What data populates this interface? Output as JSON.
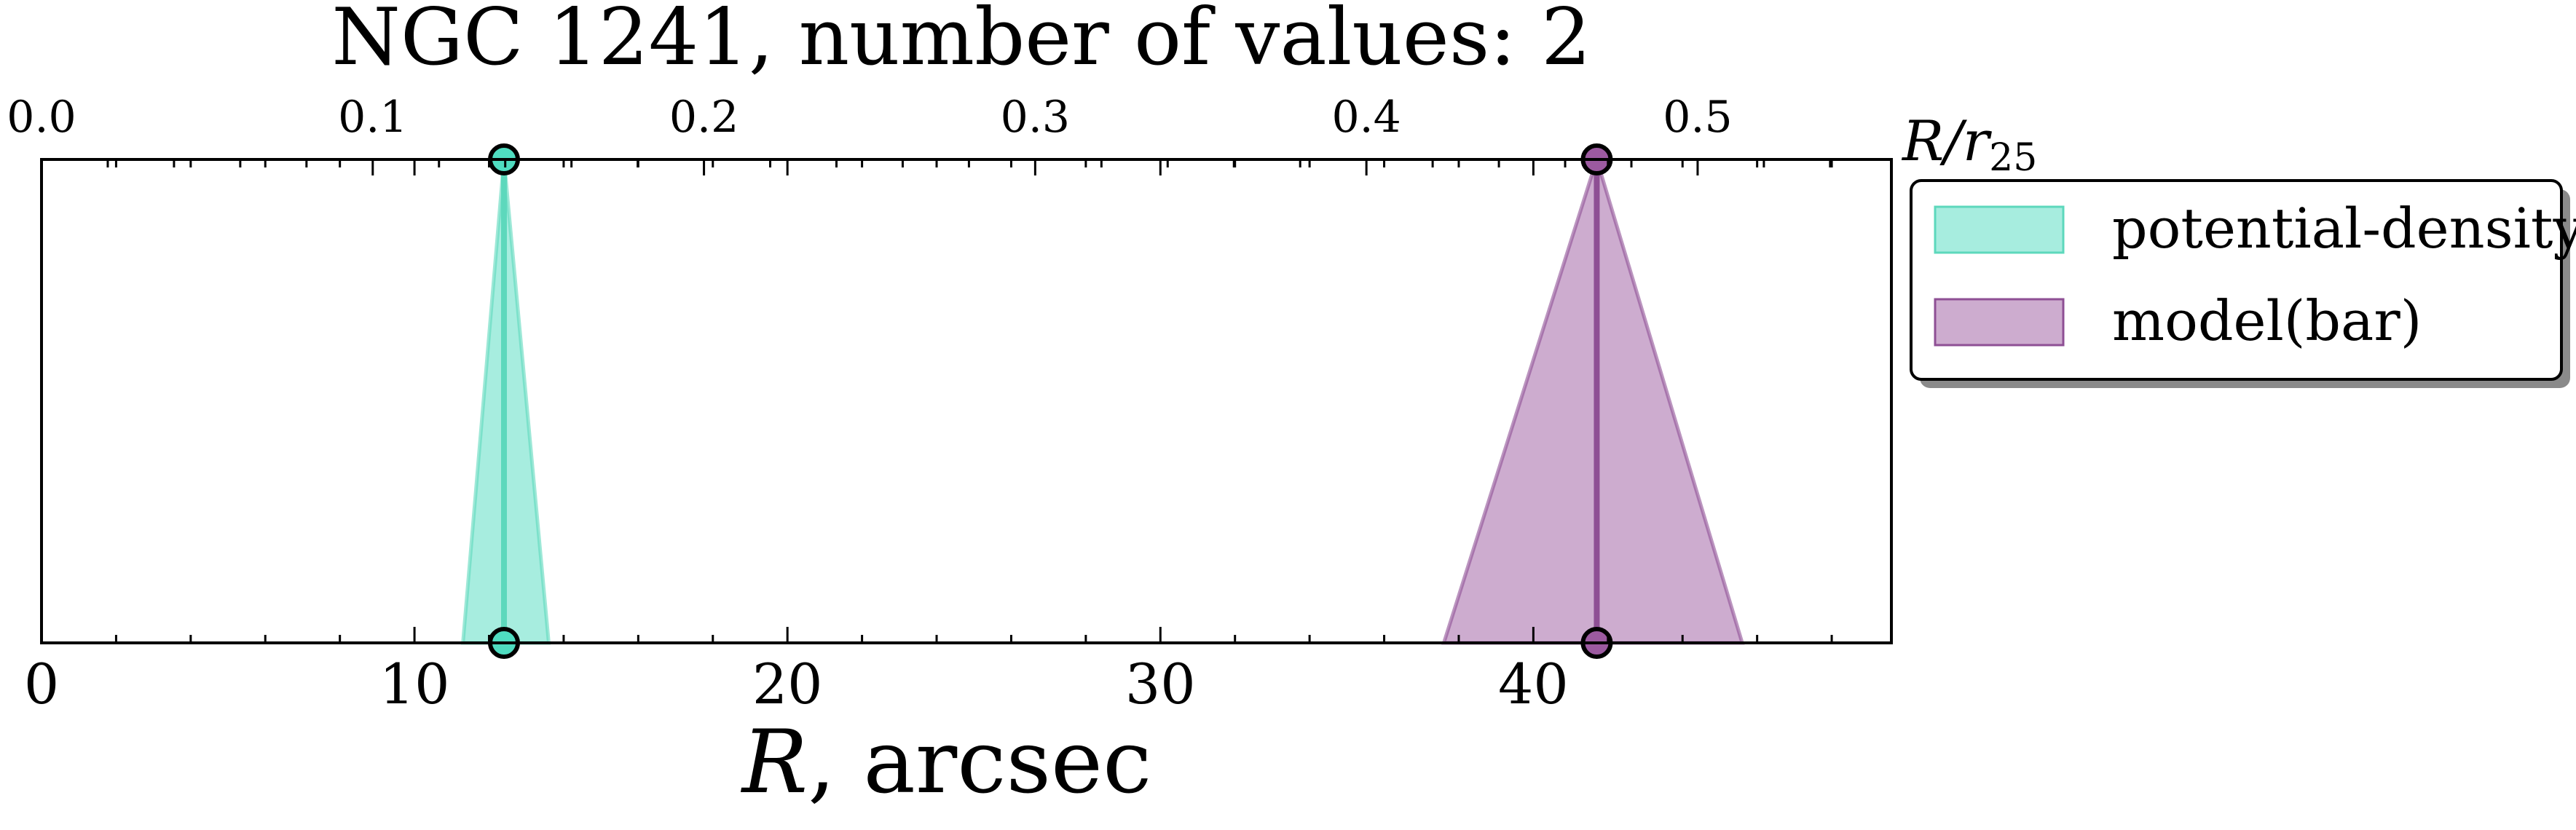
{
  "chart_data": {
    "type": "area",
    "title": "NGC 1241, number of values: 2",
    "xlabel_main": "R",
    "xlabel_unit": ", arcsec",
    "top_axis_label_main": "R/r",
    "top_axis_label_sub": "25",
    "xlim": [
      0,
      49.6
    ],
    "bottom_ticks": [
      0,
      10,
      20,
      30,
      40
    ],
    "top_xlim": [
      0.0,
      0.5585
    ],
    "top_ticks": [
      "0.0",
      "0.1",
      "0.2",
      "0.3",
      "0.4",
      "0.5"
    ],
    "grid": false,
    "legend_position": "outside-right-top",
    "series": [
      {
        "name": "potential-density",
        "center": 12.4,
        "lower": 11.3,
        "upper": 13.6,
        "color": "#4fdcc0",
        "line_color": "#5dd8bc"
      },
      {
        "name": "model(bar)",
        "center": 41.7,
        "lower": 37.6,
        "upper": 45.6,
        "color": "#9c5aa0",
        "line_color": "#8e4f94"
      }
    ]
  }
}
